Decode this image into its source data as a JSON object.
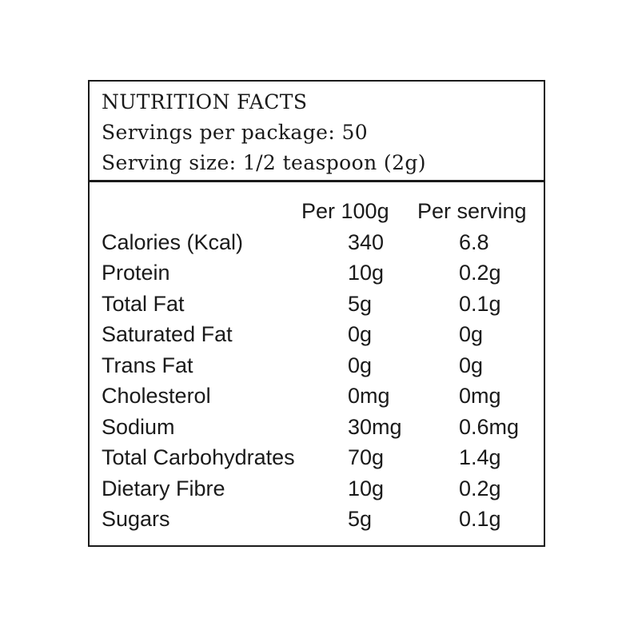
{
  "header": {
    "title": "NUTRITION FACTS",
    "servings": "Servings per package: 50",
    "serving_size": "Serving size: 1/2 teaspoon (2g)"
  },
  "columns": {
    "per_100g": "Per 100g",
    "per_serving": "Per serving"
  },
  "rows": [
    {
      "name": "Calories (Kcal)",
      "per_100g": "340",
      "per_serving": "6.8"
    },
    {
      "name": "Protein",
      "per_100g": "10g",
      "per_serving": "0.2g"
    },
    {
      "name": "Total Fat",
      "per_100g": "5g",
      "per_serving": "0.1g"
    },
    {
      "name": "Saturated Fat",
      "per_100g": "0g",
      "per_serving": "0g"
    },
    {
      "name": "Trans Fat",
      "per_100g": "0g",
      "per_serving": "0g"
    },
    {
      "name": "Cholesterol",
      "per_100g": "0mg",
      "per_serving": "0mg"
    },
    {
      "name": "Sodium",
      "per_100g": "30mg",
      "per_serving": "0.6mg"
    },
    {
      "name": "Total Carbohydrates",
      "per_100g": "70g",
      "per_serving": "1.4g"
    },
    {
      "name": "Dietary Fibre",
      "per_100g": "10g",
      "per_serving": "0.2g"
    },
    {
      "name": "Sugars",
      "per_100g": "5g",
      "per_serving": "0.1g"
    }
  ]
}
